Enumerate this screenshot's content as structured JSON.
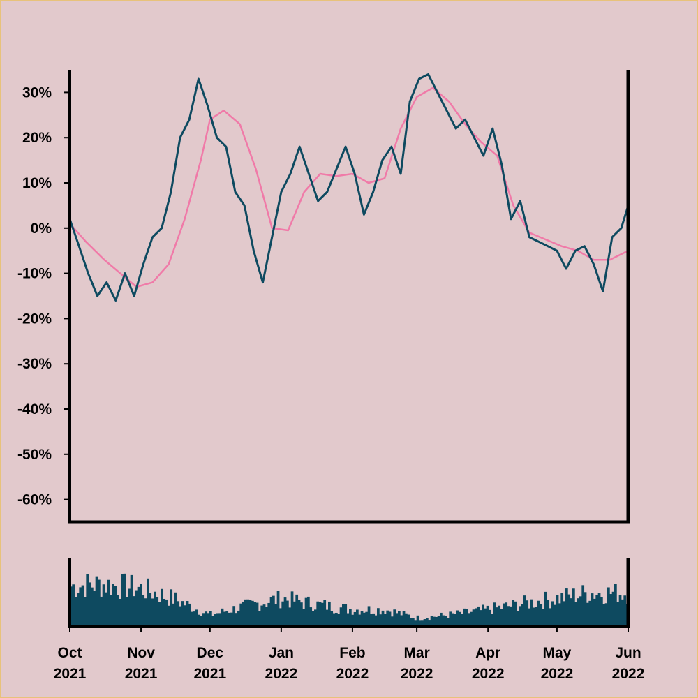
{
  "chart_data": [
    {
      "type": "line",
      "title": "",
      "xlabel": "",
      "ylabel": "",
      "x_range": [
        "2021-10-01",
        "2022-06-01"
      ],
      "ylim": [
        -65,
        35
      ],
      "y_ticks": [
        "30%",
        "20%",
        "10%",
        "0%",
        "-10%",
        "-20%",
        "-30%",
        "-40%",
        "-50%",
        "-60%"
      ],
      "y_tick_values": [
        30,
        20,
        10,
        0,
        -10,
        -20,
        -30,
        -40,
        -50,
        -60
      ],
      "grid": false,
      "colors": {
        "price": "#0e4a60",
        "moving_average": "#f07aa8",
        "background": "#e2c9cc",
        "border": "#e8c27a"
      },
      "series": [
        {
          "role": "price",
          "x": [
            "2021-10-01",
            "2021-10-05",
            "2021-10-09",
            "2021-10-13",
            "2021-10-17",
            "2021-10-21",
            "2021-10-25",
            "2021-10-29",
            "2021-11-02",
            "2021-11-06",
            "2021-11-10",
            "2021-11-14",
            "2021-11-18",
            "2021-11-22",
            "2021-11-26",
            "2021-11-30",
            "2021-12-04",
            "2021-12-08",
            "2021-12-12",
            "2021-12-16",
            "2021-12-20",
            "2021-12-24",
            "2021-12-28",
            "2022-01-01",
            "2022-01-05",
            "2022-01-09",
            "2022-01-13",
            "2022-01-17",
            "2022-01-21",
            "2022-01-25",
            "2022-01-29",
            "2022-02-02",
            "2022-02-06",
            "2022-02-10",
            "2022-02-14",
            "2022-02-18",
            "2022-02-22",
            "2022-02-26",
            "2022-03-02",
            "2022-03-06",
            "2022-03-10",
            "2022-03-14",
            "2022-03-18",
            "2022-03-22",
            "2022-03-26",
            "2022-03-30",
            "2022-04-03",
            "2022-04-07",
            "2022-04-11",
            "2022-04-15",
            "2022-04-19",
            "2022-04-23",
            "2022-04-27",
            "2022-05-01",
            "2022-05-05",
            "2022-05-09",
            "2022-05-13",
            "2022-05-17",
            "2022-05-21",
            "2022-05-25",
            "2022-05-29",
            "2022-06-01"
          ],
          "values": [
            2,
            -4,
            -10,
            -15,
            -12,
            -16,
            -10,
            -15,
            -8,
            -2,
            0,
            8,
            20,
            24,
            33,
            27,
            20,
            18,
            8,
            5,
            -5,
            -12,
            -2,
            8,
            12,
            18,
            12,
            6,
            8,
            13,
            18,
            12,
            3,
            8,
            15,
            18,
            12,
            28,
            33,
            34,
            30,
            26,
            22,
            24,
            20,
            16,
            22,
            14,
            2,
            6,
            -2,
            -3,
            -4,
            -5,
            -9,
            -5,
            -4,
            -8,
            -14,
            -2,
            0,
            5
          ]
        },
        {
          "role": "moving_average",
          "x": [
            "2021-10-01",
            "2021-10-08",
            "2021-10-16",
            "2021-10-23",
            "2021-10-30",
            "2021-11-06",
            "2021-11-13",
            "2021-11-20",
            "2021-11-27",
            "2021-12-01",
            "2021-12-07",
            "2021-12-14",
            "2021-12-21",
            "2021-12-28",
            "2022-01-04",
            "2022-01-11",
            "2022-01-18",
            "2022-01-25",
            "2022-02-01",
            "2022-02-08",
            "2022-02-15",
            "2022-02-22",
            "2022-03-01",
            "2022-03-08",
            "2022-03-15",
            "2022-03-22",
            "2022-03-29",
            "2022-04-05",
            "2022-04-12",
            "2022-04-19",
            "2022-04-26",
            "2022-05-03",
            "2022-05-10",
            "2022-05-17",
            "2022-05-24",
            "2022-06-01"
          ],
          "values": [
            1,
            -3,
            -7,
            -10,
            -13,
            -12,
            -8,
            2,
            15,
            24,
            26,
            23,
            13,
            0,
            -0.5,
            8,
            12,
            11.5,
            12,
            10,
            11,
            22,
            29,
            31,
            28,
            23,
            19,
            16,
            5,
            -1,
            -2.5,
            -4,
            -5,
            -7,
            -7,
            -5
          ]
        }
      ]
    },
    {
      "type": "bar",
      "title": "",
      "xlabel": "",
      "ylabel": "",
      "x_ticks": [
        "Oct\n2021",
        "Nov\n2021",
        "Dec\n2021",
        "Jan\n2022",
        "Feb\n2022",
        "Mar\n2022",
        "Apr\n2022",
        "May\n2022",
        "Jun\n2022"
      ],
      "ylim": [
        0,
        1
      ],
      "color": "#0e4a60",
      "x": [
        "2021-10-01",
        "2021-10-15",
        "2021-11-01",
        "2021-11-15",
        "2021-12-01",
        "2021-12-15",
        "2022-01-01",
        "2022-01-15",
        "2022-02-01",
        "2022-02-15",
        "2022-03-01",
        "2022-03-15",
        "2022-04-01",
        "2022-04-15",
        "2022-05-01",
        "2022-05-15",
        "2022-06-01"
      ],
      "values": [
        0.72,
        0.76,
        0.68,
        0.5,
        0.2,
        0.35,
        0.5,
        0.4,
        0.3,
        0.3,
        0.15,
        0.2,
        0.3,
        0.4,
        0.5,
        0.6,
        0.6
      ]
    }
  ]
}
